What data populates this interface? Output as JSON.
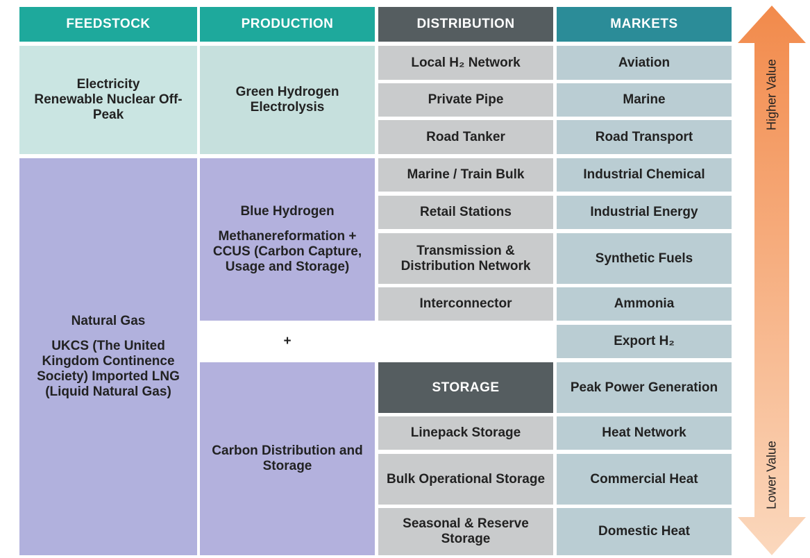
{
  "headers": {
    "feedstock": "FEEDSTOCK",
    "production": "PRODUCTION",
    "distribution": "DISTRIBUTION",
    "markets": "MARKETS"
  },
  "feedstock": [
    {
      "title": "Electricity",
      "text": "Renewable Nuclear Off-Peak"
    },
    {
      "title": "Natural Gas",
      "text": "UKCS (The United Kingdom Continence Society) Imported LNG (Liquid Natural Gas)"
    }
  ],
  "production": [
    {
      "title": "Green Hydrogen",
      "text": "Electrolysis"
    },
    {
      "title": "Blue Hydrogen",
      "text": "Methanereformation + CCUS (Carbon Capture, Usage and Storage)"
    },
    {
      "title": "Carbon Distribution and Storage"
    }
  ],
  "plus": "+",
  "distribution": [
    "Local H₂ Network",
    "Private Pipe",
    "Road Tanker",
    "Marine / Train Bulk",
    "Retail Stations",
    "Transmission & Distribution Network",
    "Interconnector"
  ],
  "storage": {
    "title": "STORAGE",
    "items": [
      "Linepack Storage",
      "Bulk Operational Storage",
      "Seasonal & Reserve Storage"
    ]
  },
  "markets": [
    "Aviation",
    "Marine",
    "Road Transport",
    "Industrial Chemical",
    "Industrial Energy",
    "Synthetic Fuels",
    "Ammonia",
    "Export H₂",
    "Peak Power Generation",
    "Heat Network",
    "Commercial Heat",
    "Domestic Heat"
  ],
  "arrow": {
    "top": "Higher Value",
    "bottom": "Lower Value"
  }
}
